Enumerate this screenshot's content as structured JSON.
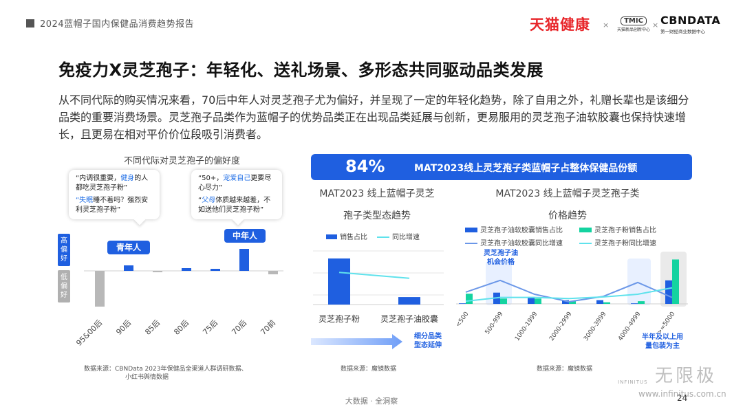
{
  "header": {
    "report_title": "2024蓝帽子国内保健品消费趋势报告",
    "logo_tmall": "天猫健康",
    "logo_x": "×",
    "logo_tmic": "TMIC",
    "logo_tmic_sub": "天猫新品创新中心",
    "logo_cbn": "CBNDATA",
    "logo_cbn_sub": "第一财经商业数据中心"
  },
  "title": "免疫力X灵芝孢子：年轻化、送礼场景、多形态共同驱动品类发展",
  "paragraph": "从不同代际的购买情况来看，70后中年人对灵芝孢子尤为偏好，并呈现了一定的年轻化趋势，除了自用之外，礼赠长辈也是该细分品类的重要消费场景。灵芝孢子品类作为蓝帽子的优势品类正在出现品类延展与创新，更易服用的灵芝孢子油软胶囊也保持快速增长，且更易在相对平价价位段吸引消费者。",
  "left_chart": {
    "title": "不同代际对灵芝孢子的偏好度",
    "callout_young": {
      "q1_pre": "“内调很重要，",
      "q1_hl": "健身",
      "q1_mid": "的人都吃灵芝孢子粉”",
      "q2_hl": "“失眠",
      "q2_post": "睡不着吗？强烈安利灵芝孢子粉”"
    },
    "callout_middle": {
      "q1_pre": "“50+，",
      "q1_hl": "宠爱自己",
      "q1_post": "更要尽心尽力”",
      "q2_pre": "“",
      "q2_hl": "父母",
      "q2_post": "体质越来越差，不如送他们灵芝孢子粉”"
    },
    "pill_young": "青年人",
    "pill_middle": "中年人",
    "tag_high": "高偏好",
    "tag_low": "低偏好",
    "source_line1": "数据来源：CBNData 2023年保健品全渠道人群调研数据、",
    "source_line2": "小红书舆情数据"
  },
  "kpi": {
    "value": "84%",
    "text": "MAT2023线上灵芝孢子类蓝帽子占整体保健品份额"
  },
  "mid_chart": {
    "title_line1": "MAT2023 线上蓝帽子灵芝",
    "title_line2": "孢子类型态趋势",
    "legend_bar": "销售占比",
    "legend_line": "同比增速",
    "arrow_note_line1": "细分品类",
    "arrow_note_line2": "型态延伸",
    "source": "数据来源：魔镜数据"
  },
  "right_chart": {
    "title_line1": "MAT2023 线上蓝帽子灵芝孢子类",
    "title_line2": "价格趋势",
    "legend": [
      "灵芝孢子油软胶囊销售占比",
      "灵芝孢子粉销售占比",
      "灵芝孢子油软胶囊同比增速",
      "灵芝孢子粉同比增速"
    ],
    "note_top_line1": "灵芝孢子油",
    "note_top_line2": "机会价格",
    "note_bottom_line1": "半年及以上用",
    "note_bottom_line2": "量包装为主",
    "source": "数据来源：魔镜数据"
  },
  "chart_data": [
    {
      "type": "bar",
      "title": "不同代际对灵芝孢子的偏好度",
      "categories": [
        "95&00后",
        "90后",
        "85后",
        "80后",
        "75后",
        "70后",
        "70前"
      ],
      "values": [
        -52,
        8,
        -2,
        4,
        3,
        32,
        -5
      ],
      "ylim": [
        -60,
        40
      ],
      "color": "#1f5fe0",
      "negative_color": "#b8b8b8"
    },
    {
      "type": "bar",
      "title": "MAT2023 线上蓝帽子灵芝孢子类型态趋势",
      "categories": [
        "灵芝孢子粉",
        "灵芝孢子油胶囊"
      ],
      "series": [
        {
          "name": "销售占比",
          "values": [
            86,
            14
          ]
        },
        {
          "name": "同比增速",
          "values": [
            60,
            49
          ]
        }
      ],
      "ylim": [
        0,
        100
      ],
      "colors": {
        "bar": "#1f5fe0",
        "line": "#5fe2ec"
      }
    },
    {
      "type": "bar",
      "title": "MAT2023 线上蓝帽子灵芝孢子类价格趋势",
      "categories": [
        "<500",
        "500-999",
        "1000-1999",
        "2000-2999",
        "3000-3999",
        "4000-4999",
        ">=5000"
      ],
      "series": [
        {
          "name": "灵芝孢子油软胶囊销售占比",
          "values": [
            1,
            21,
            13,
            7,
            7,
            1,
            44
          ]
        },
        {
          "name": "灵芝孢子粉销售占比",
          "values": [
            19,
            10,
            10,
            5,
            3,
            5,
            83
          ]
        },
        {
          "name": "灵芝孢子油软胶囊同比增速",
          "values": [
            22,
            44,
            18,
            4,
            14,
            40,
            12
          ]
        },
        {
          "name": "灵芝孢子粉同比增速",
          "values": [
            5,
            12,
            12,
            10,
            13,
            18,
            30
          ]
        }
      ],
      "ylim": [
        0,
        90
      ],
      "colors": [
        "#1f5fe0",
        "#14d3a0",
        "#6b97e8",
        "#5fe2ec"
      ]
    }
  ]
}
